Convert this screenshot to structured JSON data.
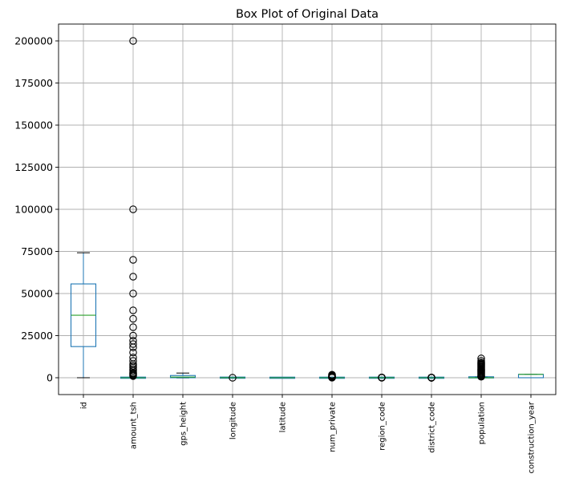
{
  "chart_data": {
    "type": "box",
    "title": "Box Plot of Original Data",
    "xlabel": "",
    "ylabel": "",
    "ylim": [
      -10000,
      210000
    ],
    "yticks": [
      0,
      25000,
      50000,
      75000,
      100000,
      125000,
      150000,
      175000,
      200000
    ],
    "grid": true,
    "series": [
      {
        "category": "id",
        "min": 0,
        "q1": 18500,
        "median": 37100,
        "q3": 55700,
        "max": 74200,
        "fliers": []
      },
      {
        "category": "amount_tsh",
        "min": 0,
        "q1": 0,
        "median": 0,
        "q3": 20,
        "max": 50,
        "fliers": [
          200000,
          100000,
          70000,
          60000,
          50000,
          40000,
          35000,
          30000,
          25000,
          22000,
          20000,
          18000,
          15000,
          12000,
          10000,
          8000,
          7000,
          6000,
          5000,
          4000,
          3000,
          2500,
          2000,
          1500,
          1000
        ]
      },
      {
        "category": "gps_height",
        "min": -90,
        "q1": 0,
        "median": 370,
        "q3": 1320,
        "max": 2770,
        "fliers": []
      },
      {
        "category": "longitude",
        "min": 0,
        "q1": 33,
        "median": 35,
        "q3": 37,
        "max": 40,
        "fliers": [
          0
        ]
      },
      {
        "category": "latitude",
        "min": -11,
        "q1": -8,
        "median": -5,
        "q3": -3,
        "max": 0,
        "fliers": []
      },
      {
        "category": "num_private",
        "min": 0,
        "q1": 0,
        "median": 0,
        "q3": 0,
        "max": 0,
        "fliers": [
          1776,
          1402,
          1000,
          700,
          500,
          300,
          200,
          100,
          50
        ]
      },
      {
        "category": "region_code",
        "min": 1,
        "q1": 5,
        "median": 12,
        "q3": 17,
        "max": 35,
        "fliers": [
          99,
          98,
          90,
          80,
          60,
          40
        ]
      },
      {
        "category": "district_code",
        "min": 0,
        "q1": 2,
        "median": 3,
        "q3": 5,
        "max": 9,
        "fliers": [
          80,
          67,
          63,
          62,
          60,
          53,
          43,
          33,
          30,
          23
        ]
      },
      {
        "category": "population",
        "min": 0,
        "q1": 0,
        "median": 25,
        "q3": 215,
        "max": 535,
        "fliers": [
          11463,
          10000,
          9000,
          8500,
          8000,
          7500,
          7000,
          6500,
          6000,
          5500,
          5000,
          4500,
          4000,
          3500,
          3000,
          2500,
          2000,
          1500,
          1000,
          800,
          600
        ]
      },
      {
        "category": "construction_year",
        "min": 0,
        "q1": 0,
        "median": 1986,
        "q3": 2004,
        "max": 2013,
        "fliers": []
      }
    ]
  }
}
